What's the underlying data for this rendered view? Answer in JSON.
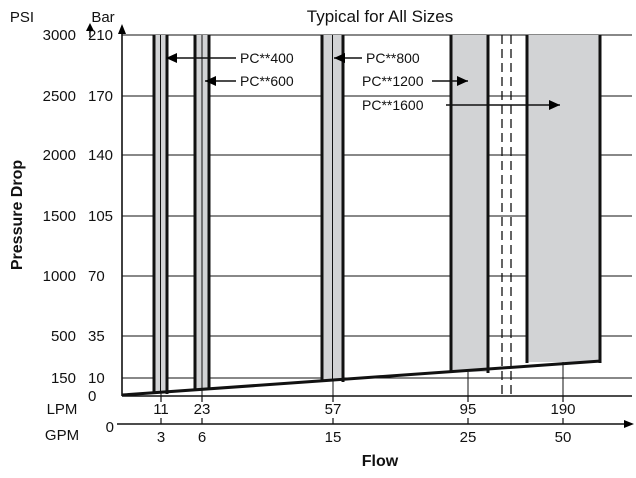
{
  "chart_data": {
    "type": "area",
    "title": "Typical for All Sizes",
    "xlabel": "Flow",
    "ylabel": "Pressure Drop",
    "y_units": {
      "primary": "PSI",
      "secondary": "Bar"
    },
    "x_units": {
      "primary": "LPM",
      "secondary": "GPM"
    },
    "grid": true,
    "y_ticks": [
      {
        "psi": "3000",
        "bar": "210",
        "v": 210
      },
      {
        "psi": "2500",
        "bar": "170",
        "v": 170
      },
      {
        "psi": "2000",
        "bar": "140",
        "v": 140
      },
      {
        "psi": "1500",
        "bar": "105",
        "v": 105
      },
      {
        "psi": "1000",
        "bar": "70",
        "v": 70
      },
      {
        "psi": "500",
        "bar": "35",
        "v": 35
      },
      {
        "psi": "150",
        "bar": "10",
        "v": 10
      },
      {
        "psi": "",
        "bar": "0",
        "v": 0
      }
    ],
    "x_ticks_lpm": [
      "11",
      "23",
      "57",
      "95",
      "190"
    ],
    "x_ticks_gpm": [
      "3",
      "6",
      "15",
      "25",
      "50"
    ],
    "x_origin_gpm": "0",
    "series": [
      {
        "name": "PC**400",
        "flow_lpm": 11,
        "pressure_drop_bar": [
          0,
          210
        ]
      },
      {
        "name": "PC**600",
        "flow_lpm": 23,
        "pressure_drop_bar": [
          0,
          210
        ]
      },
      {
        "name": "PC**800",
        "flow_lpm": 57,
        "pressure_drop_bar": [
          0,
          210
        ]
      },
      {
        "name": "PC**1200",
        "flow_lpm": 95,
        "pressure_drop_bar": [
          0,
          210
        ]
      },
      {
        "name": "PC**1600",
        "flow_lpm": 190,
        "pressure_drop_bar": [
          0,
          210
        ]
      }
    ]
  }
}
